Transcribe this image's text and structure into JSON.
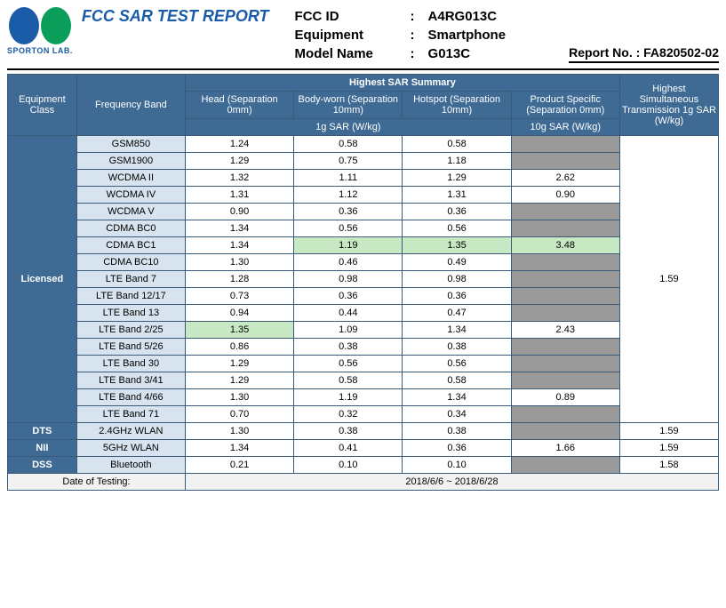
{
  "header": {
    "logo_text": "SPORTON LAB.",
    "report_title": "FCC SAR TEST REPORT",
    "meta": {
      "fcc_id_label": "FCC ID",
      "fcc_id": "A4RG013C",
      "equipment_label": "Equipment",
      "equipment": "Smartphone",
      "model_label": "Model Name",
      "model": "G013C"
    },
    "report_no_label": "Report No. : ",
    "report_no": "FA820502-02"
  },
  "table": {
    "columns": {
      "equipment_class": "Equipment Class",
      "frequency_band": "Frequency Band",
      "highest_sar_summary": "Highest SAR Summary",
      "head": "Head (Separation 0mm)",
      "body_worn": "Body-worn (Separation 10mm)",
      "hotspot": "Hotspot (Separation 10mm)",
      "product_specific": "Product Specific (Separation 0mm)",
      "sar1g": "1g SAR (W/kg)",
      "sar10g": "10g SAR (W/kg)",
      "highest_sim": "Highest Simultaneous Transmission 1g SAR (W/kg)"
    },
    "classes": {
      "licensed": "Licensed",
      "dts": "DTS",
      "nii": "NII",
      "dss": "DSS"
    },
    "highlight_color": "#c7e8c2",
    "header_bg": "#3e6a94",
    "band_bg": "#d7e3ef",
    "grey_bg": "#9a9a9a",
    "border_color": "#3a5a7a",
    "rows": [
      {
        "class": "licensed",
        "band": "GSM850",
        "head": "1.24",
        "body": "0.58",
        "hotspot": "0.58",
        "ps": null,
        "hl": []
      },
      {
        "class": "licensed",
        "band": "GSM1900",
        "head": "1.29",
        "body": "0.75",
        "hotspot": "1.18",
        "ps": null,
        "hl": []
      },
      {
        "class": "licensed",
        "band": "WCDMA II",
        "head": "1.32",
        "body": "1.11",
        "hotspot": "1.29",
        "ps": "2.62",
        "hl": []
      },
      {
        "class": "licensed",
        "band": "WCDMA IV",
        "head": "1.31",
        "body": "1.12",
        "hotspot": "1.31",
        "ps": "0.90",
        "hl": []
      },
      {
        "class": "licensed",
        "band": "WCDMA V",
        "head": "0.90",
        "body": "0.36",
        "hotspot": "0.36",
        "ps": null,
        "hl": []
      },
      {
        "class": "licensed",
        "band": "CDMA BC0",
        "head": "1.34",
        "body": "0.56",
        "hotspot": "0.56",
        "ps": null,
        "hl": []
      },
      {
        "class": "licensed",
        "band": "CDMA BC1",
        "head": "1.34",
        "body": "1.19",
        "hotspot": "1.35",
        "ps": "3.48",
        "hl": [
          "body",
          "hotspot",
          "ps"
        ]
      },
      {
        "class": "licensed",
        "band": "CDMA BC10",
        "head": "1.30",
        "body": "0.46",
        "hotspot": "0.49",
        "ps": null,
        "hl": []
      },
      {
        "class": "licensed",
        "band": "LTE Band 7",
        "head": "1.28",
        "body": "0.98",
        "hotspot": "0.98",
        "ps": null,
        "hl": []
      },
      {
        "class": "licensed",
        "band": "LTE Band 12/17",
        "head": "0.73",
        "body": "0.36",
        "hotspot": "0.36",
        "ps": null,
        "hl": []
      },
      {
        "class": "licensed",
        "band": "LTE Band 13",
        "head": "0.94",
        "body": "0.44",
        "hotspot": "0.47",
        "ps": null,
        "hl": []
      },
      {
        "class": "licensed",
        "band": "LTE Band 2/25",
        "head": "1.35",
        "body": "1.09",
        "hotspot": "1.34",
        "ps": "2.43",
        "hl": [
          "head"
        ]
      },
      {
        "class": "licensed",
        "band": "LTE Band 5/26",
        "head": "0.86",
        "body": "0.38",
        "hotspot": "0.38",
        "ps": null,
        "hl": []
      },
      {
        "class": "licensed",
        "band": "LTE Band 30",
        "head": "1.29",
        "body": "0.56",
        "hotspot": "0.56",
        "ps": null,
        "hl": []
      },
      {
        "class": "licensed",
        "band": "LTE Band 3/41",
        "head": "1.29",
        "body": "0.58",
        "hotspot": "0.58",
        "ps": null,
        "hl": []
      },
      {
        "class": "licensed",
        "band": "LTE Band 4/66",
        "head": "1.30",
        "body": "1.19",
        "hotspot": "1.34",
        "ps": "0.89",
        "hl": []
      },
      {
        "class": "licensed",
        "band": "LTE Band 71",
        "head": "0.70",
        "body": "0.32",
        "hotspot": "0.34",
        "ps": null,
        "hl": []
      }
    ],
    "licensed_highest": "1.59",
    "other_rows": [
      {
        "class": "DTS",
        "band": "2.4GHz WLAN",
        "head": "1.30",
        "body": "0.38",
        "hotspot": "0.38",
        "ps": null,
        "highest": "1.59"
      },
      {
        "class": "NII",
        "band": "5GHz WLAN",
        "head": "1.34",
        "body": "0.41",
        "hotspot": "0.36",
        "ps": "1.66",
        "highest": "1.59"
      },
      {
        "class": "DSS",
        "band": "Bluetooth",
        "head": "0.21",
        "body": "0.10",
        "hotspot": "0.10",
        "ps": null,
        "highest": "1.58"
      }
    ],
    "footer": {
      "date_label": "Date of Testing:",
      "date_value": "2018/6/6 ~ 2018/6/28"
    }
  }
}
